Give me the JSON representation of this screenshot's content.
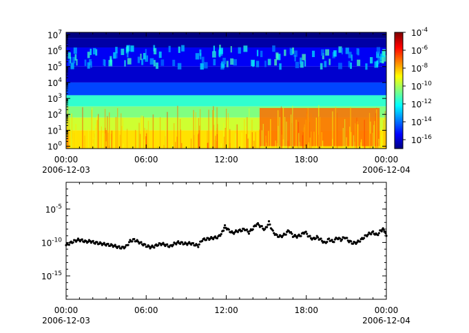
{
  "chart_data": [
    {
      "type": "heatmap",
      "title": "",
      "xlabel": "",
      "ylabel": "",
      "x_tick_labels": [
        {
          "time": "00:00",
          "date": "2006-12-03",
          "hours": 0
        },
        {
          "time": "06:00",
          "date": "",
          "hours": 6
        },
        {
          "time": "12:00",
          "date": "",
          "hours": 12
        },
        {
          "time": "18:00",
          "date": "",
          "hours": 18
        },
        {
          "time": "00:00",
          "date": "2006-12-04",
          "hours": 24
        }
      ],
      "xlim_hours": [
        0,
        24
      ],
      "y_scale": "log",
      "y_tick_exponents": [
        0,
        1,
        2,
        3,
        4,
        5,
        6,
        7
      ],
      "ylim_log10": [
        -0.15,
        7.15
      ],
      "colorbar": {
        "scale": "log",
        "range_log10": [
          -17,
          -4
        ],
        "tick_exponents": [
          -4,
          -6,
          -8,
          -10,
          -12,
          -14,
          -16
        ],
        "colormap": [
          "#00007f",
          "#0000ff",
          "#0080ff",
          "#00ffff",
          "#80ff80",
          "#ffff00",
          "#ff8000",
          "#ff0000",
          "#7f0000"
        ]
      },
      "bands": [
        {
          "ylog": [
            6.8,
            7.15
          ],
          "colorlog": -17.0,
          "note": "dark blue top"
        },
        {
          "ylog": [
            6.2,
            6.8
          ],
          "colorlog": -16.5
        },
        {
          "ylog": [
            5.0,
            6.2
          ],
          "colorlog": -15.5
        },
        {
          "ylog": [
            4.0,
            5.0
          ],
          "colorlog": -16.0
        },
        {
          "ylog": [
            3.2,
            4.0
          ],
          "colorlog": -14.5
        },
        {
          "ylog": [
            2.5,
            3.2
          ],
          "colorlog": -11.5
        },
        {
          "ylog": [
            1.8,
            2.5
          ],
          "colorlog": -10.5
        },
        {
          "ylog": [
            1.0,
            1.8
          ],
          "colorlog": -9.5
        },
        {
          "ylog": [
            -0.15,
            1.0
          ],
          "colorlog": -8.5
        }
      ],
      "hot_region": {
        "hours": [
          14.5,
          23.5
        ],
        "ylog": [
          0.0,
          2.4
        ],
        "colorlog": -7.0
      }
    },
    {
      "type": "scatter",
      "title": "",
      "xlabel": "",
      "ylabel": "",
      "x_tick_labels": [
        {
          "time": "00:00",
          "date": "2006-12-03",
          "hours": 0
        },
        {
          "time": "06:00",
          "date": "",
          "hours": 6
        },
        {
          "time": "12:00",
          "date": "",
          "hours": 12
        },
        {
          "time": "18:00",
          "date": "",
          "hours": 18
        },
        {
          "time": "00:00",
          "date": "2006-12-04",
          "hours": 24
        }
      ],
      "xlim_hours": [
        0,
        24
      ],
      "y_scale": "log",
      "y_tick_exponents": [
        -5,
        -10,
        -15
      ],
      "ylim_log10": [
        -18.5,
        -1.0
      ],
      "marker_color": "#000000",
      "series": [
        {
          "points_hours_log10": [
            [
              0.0,
              -10.4
            ],
            [
              0.3,
              -10.1
            ],
            [
              0.6,
              -9.8
            ],
            [
              0.9,
              -9.6
            ],
            [
              1.2,
              -9.7
            ],
            [
              1.5,
              -9.9
            ],
            [
              1.8,
              -9.8
            ],
            [
              2.1,
              -10.0
            ],
            [
              2.4,
              -10.1
            ],
            [
              2.7,
              -10.2
            ],
            [
              3.0,
              -10.3
            ],
            [
              3.3,
              -10.4
            ],
            [
              3.6,
              -10.5
            ],
            [
              3.9,
              -10.7
            ],
            [
              4.2,
              -10.8
            ],
            [
              4.5,
              -10.6
            ],
            [
              4.8,
              -9.8
            ],
            [
              5.1,
              -9.6
            ],
            [
              5.4,
              -9.9
            ],
            [
              5.7,
              -10.2
            ],
            [
              6.0,
              -10.5
            ],
            [
              6.3,
              -10.7
            ],
            [
              6.6,
              -10.6
            ],
            [
              6.9,
              -10.3
            ],
            [
              7.2,
              -10.2
            ],
            [
              7.5,
              -10.4
            ],
            [
              7.8,
              -10.6
            ],
            [
              8.1,
              -10.2
            ],
            [
              8.4,
              -10.0
            ],
            [
              8.7,
              -10.1
            ],
            [
              9.0,
              -10.2
            ],
            [
              9.3,
              -10.1
            ],
            [
              9.6,
              -10.3
            ],
            [
              9.9,
              -10.5
            ],
            [
              10.2,
              -9.6
            ],
            [
              10.5,
              -9.5
            ],
            [
              10.8,
              -9.4
            ],
            [
              11.1,
              -9.3
            ],
            [
              11.4,
              -9.2
            ],
            [
              11.7,
              -8.5
            ],
            [
              11.9,
              -7.6
            ],
            [
              12.2,
              -8.2
            ],
            [
              12.5,
              -8.6
            ],
            [
              12.8,
              -8.3
            ],
            [
              13.1,
              -8.2
            ],
            [
              13.4,
              -8.0
            ],
            [
              13.7,
              -8.5
            ],
            [
              14.0,
              -7.9
            ],
            [
              14.3,
              -7.2
            ],
            [
              14.6,
              -7.6
            ],
            [
              14.9,
              -8.1
            ],
            [
              15.2,
              -7.0
            ],
            [
              15.5,
              -8.4
            ],
            [
              15.8,
              -9.0
            ],
            [
              16.1,
              -9.1
            ],
            [
              16.4,
              -8.8
            ],
            [
              16.7,
              -8.2
            ],
            [
              17.0,
              -9.0
            ],
            [
              17.3,
              -9.1
            ],
            [
              17.6,
              -8.9
            ],
            [
              17.9,
              -8.4
            ],
            [
              18.2,
              -9.1
            ],
            [
              18.5,
              -9.5
            ],
            [
              18.8,
              -9.2
            ],
            [
              19.1,
              -9.6
            ],
            [
              19.4,
              -10.1
            ],
            [
              19.7,
              -9.5
            ],
            [
              20.0,
              -9.9
            ],
            [
              20.3,
              -9.3
            ],
            [
              20.6,
              -9.6
            ],
            [
              20.9,
              -9.2
            ],
            [
              21.2,
              -9.8
            ],
            [
              21.5,
              -10.1
            ],
            [
              21.8,
              -10.0
            ],
            [
              22.1,
              -9.6
            ],
            [
              22.4,
              -9.1
            ],
            [
              22.7,
              -8.7
            ],
            [
              23.0,
              -8.5
            ],
            [
              23.3,
              -8.9
            ],
            [
              23.6,
              -8.2
            ],
            [
              23.8,
              -8.0
            ],
            [
              24.0,
              -9.0
            ]
          ]
        }
      ]
    }
  ]
}
